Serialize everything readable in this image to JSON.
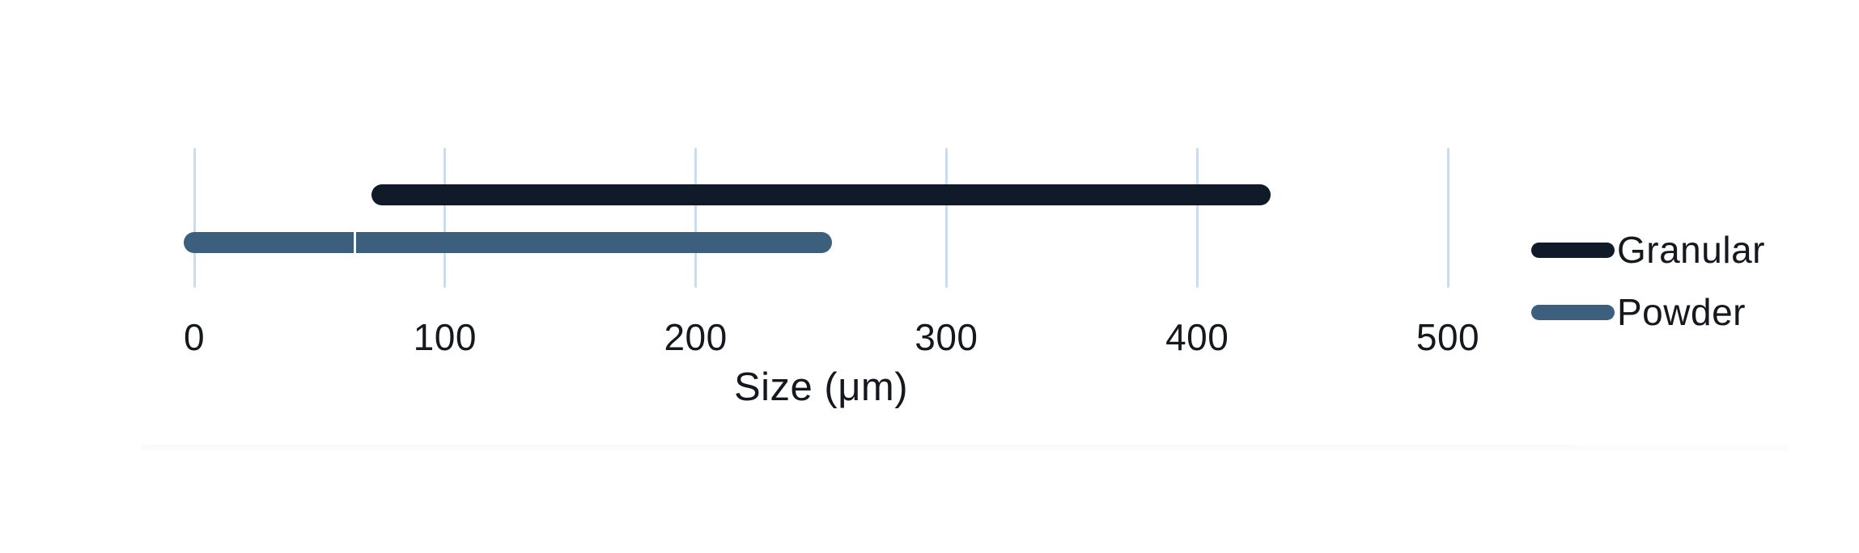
{
  "chart_data": {
    "type": "bar",
    "subtype": "horizontal-range-bar",
    "title": "",
    "xlabel": "Size (μm)",
    "ylabel": "",
    "xlim": [
      0,
      500
    ],
    "x_ticks": [
      0,
      100,
      200,
      300,
      400,
      500
    ],
    "grid": "vertical-on",
    "legend_position": "right",
    "series": [
      {
        "name": "Granular",
        "color": "#101a28",
        "min": 75,
        "max": 425,
        "segments": [
          [
            75,
            425
          ]
        ]
      },
      {
        "name": "Powder",
        "color": "#3d5f7e",
        "min": 0,
        "max": 250,
        "segments": [
          [
            0,
            64
          ],
          [
            64,
            250
          ]
        ]
      }
    ],
    "colors": {
      "gridline": "#cbdcec",
      "text": "#15191f",
      "background": "#ffffff",
      "granular_bar": "#101a28",
      "powder_bar": "#3d5f7e"
    }
  }
}
